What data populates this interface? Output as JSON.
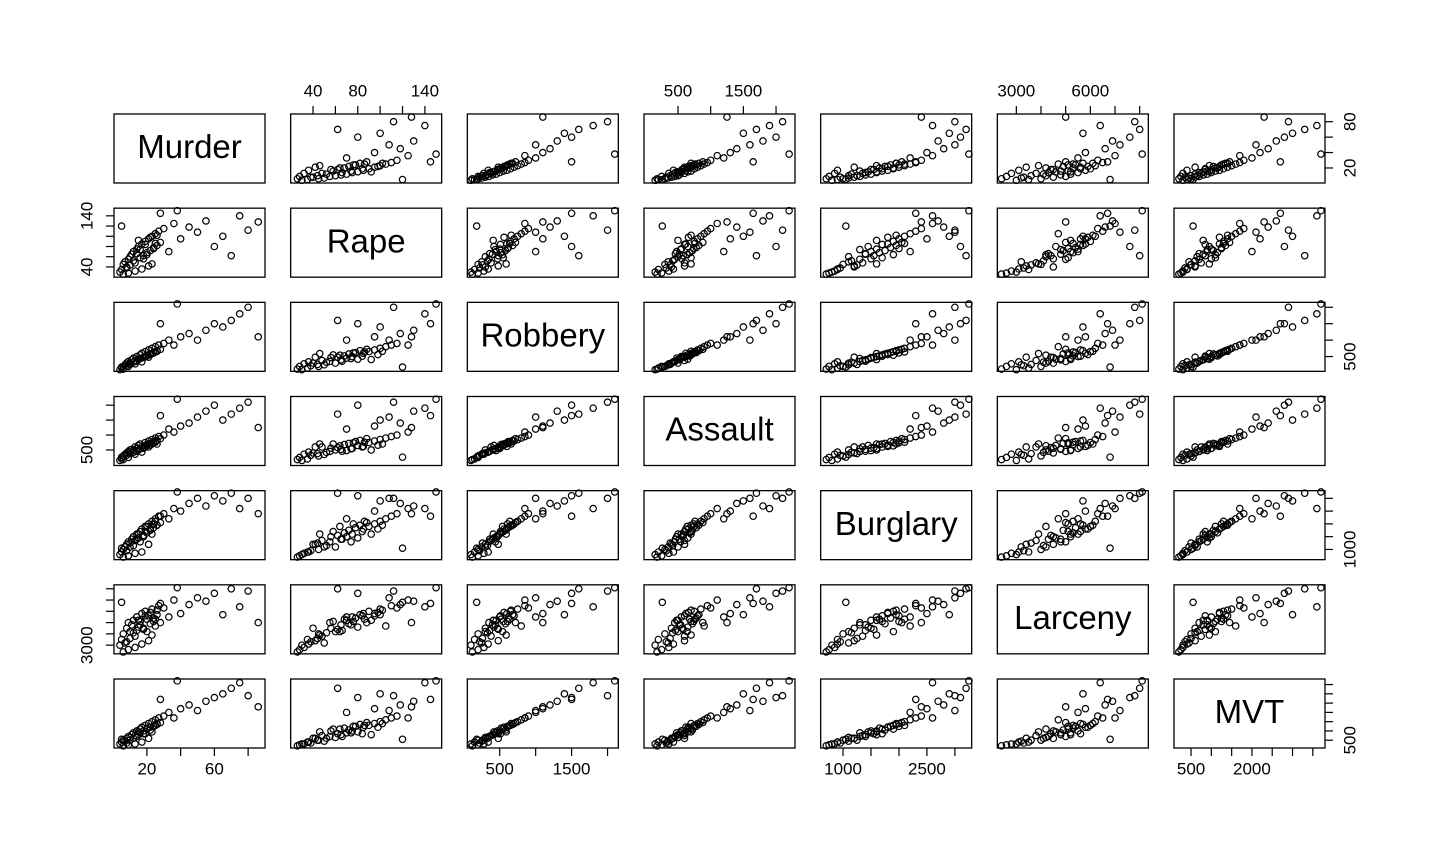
{
  "chart_data": {
    "type": "scatter_matrix",
    "variables": [
      {
        "name": "Murder",
        "lim": [
          0.5,
          90
        ],
        "ticks": [
          20,
          40,
          60,
          80
        ],
        "xticks": [
          20,
          60
        ],
        "yticks": [
          20,
          80
        ],
        "values": [
          4,
          5,
          6,
          7,
          8,
          9,
          10,
          11,
          12,
          13,
          14,
          15,
          16,
          17,
          18,
          19,
          20,
          21,
          22,
          23,
          24,
          25,
          26,
          27,
          28,
          5,
          8,
          10,
          12,
          14,
          15,
          16,
          18,
          19,
          20,
          22,
          23,
          24,
          25,
          26,
          30,
          33,
          36,
          40,
          45,
          50,
          55,
          60,
          65,
          70,
          75,
          80,
          86,
          38,
          28,
          21,
          17,
          13,
          9,
          6
        ]
      },
      {
        "name": "Rape",
        "lim": [
          20,
          155
        ],
        "ticks": [
          40,
          60,
          80,
          100,
          120,
          140
        ],
        "xticks": [
          40,
          80,
          140
        ],
        "yticks": [
          40,
          140
        ],
        "values": [
          30,
          35,
          45,
          50,
          40,
          55,
          60,
          65,
          70,
          48,
          75,
          80,
          58,
          85,
          62,
          90,
          68,
          95,
          72,
          100,
          78,
          105,
          82,
          110,
          88,
          120,
          38,
          44,
          52,
          66,
          92,
          74,
          56,
          84,
          64,
          98,
          46,
          76,
          86,
          102,
          115,
          70,
          125,
          95,
          118,
          108,
          130,
          80,
          100,
          62,
          140,
          112,
          128,
          150,
          145,
          42,
          36,
          32,
          28,
          26
        ]
      },
      {
        "name": "Robbery",
        "lim": [
          50,
          2150
        ],
        "ticks": [
          500,
          1000,
          1500,
          2000
        ],
        "xticks": [
          500,
          1500
        ],
        "yticks": [
          500
        ],
        "values": [
          100,
          150,
          200,
          250,
          300,
          350,
          300,
          400,
          450,
          380,
          500,
          420,
          550,
          600,
          480,
          650,
          520,
          700,
          580,
          750,
          620,
          800,
          680,
          850,
          720,
          180,
          220,
          260,
          330,
          360,
          410,
          440,
          470,
          510,
          540,
          560,
          590,
          610,
          640,
          660,
          900,
          1000,
          850,
          1100,
          1200,
          1000,
          1300,
          1500,
          1400,
          1600,
          1800,
          2000,
          1100,
          2100,
          1500,
          480,
          340,
          280,
          200,
          120
        ]
      },
      {
        "name": "Assault",
        "lim": [
          -20,
          2290
        ],
        "ticks": [
          500,
          1000,
          1500,
          2000
        ],
        "xticks": [
          500,
          1500
        ],
        "yticks": [
          500
        ],
        "values": [
          150,
          200,
          300,
          350,
          400,
          450,
          500,
          520,
          480,
          600,
          550,
          650,
          700,
          620,
          580,
          750,
          680,
          800,
          720,
          850,
          780,
          900,
          820,
          950,
          880,
          260,
          320,
          380,
          420,
          460,
          500,
          540,
          560,
          600,
          640,
          660,
          700,
          740,
          760,
          700,
          1000,
          1200,
          1100,
          1300,
          1400,
          1600,
          1800,
          2000,
          1500,
          1700,
          1900,
          2100,
          1250,
          2200,
          1650,
          600,
          430,
          360,
          250,
          180
        ]
      },
      {
        "name": "Burglary",
        "lim": [
          600,
          3300
        ],
        "ticks": [
          1000,
          1500,
          2000,
          2500,
          3000
        ],
        "xticks": [
          1000,
          2500
        ],
        "yticks": [
          1000
        ],
        "values": [
          800,
          900,
          1000,
          1100,
          1200,
          1300,
          1100,
          1400,
          1500,
          1350,
          1600,
          1450,
          1700,
          1800,
          1550,
          1900,
          1650,
          2000,
          1750,
          2100,
          1850,
          2200,
          1950,
          2300,
          2050,
          1050,
          950,
          1250,
          1150,
          1400,
          1600,
          1300,
          1500,
          1700,
          1900,
          1800,
          1600,
          2000,
          2100,
          1950,
          2400,
          2200,
          2600,
          2500,
          2800,
          3000,
          2700,
          3100,
          2900,
          3200,
          2600,
          3000,
          2400,
          3250,
          2300,
          1200,
          900,
          850,
          750,
          700
        ]
      },
      {
        "name": "Larceny",
        "lim": [
          2230,
          8350
        ],
        "ticks": [
          3000,
          4000,
          5000,
          6000,
          7000,
          8000
        ],
        "xticks": [
          3000,
          6000
        ],
        "yticks": [
          3000
        ],
        "values": [
          3000,
          3500,
          4000,
          3200,
          4500,
          5000,
          4200,
          4800,
          5200,
          3800,
          5500,
          4600,
          5100,
          5800,
          4400,
          6000,
          5300,
          5600,
          4900,
          6200,
          5400,
          4700,
          5700,
          6500,
          5000,
          6800,
          3300,
          3600,
          4100,
          4300,
          5200,
          4800,
          4500,
          5600,
          4200,
          5900,
          3900,
          5100,
          5300,
          6100,
          6300,
          5500,
          7000,
          5800,
          6600,
          7200,
          6900,
          7600,
          5700,
          8000,
          6400,
          7800,
          5000,
          8100,
          6700,
          3400,
          3100,
          2800,
          2600,
          2400
        ]
      },
      {
        "name": "MVT",
        "lim": [
          80,
          3800
        ],
        "ticks": [
          500,
          1000,
          1500,
          2000,
          2500,
          3000,
          3500
        ],
        "xticks": [
          500,
          2000
        ],
        "yticks": [
          500
        ],
        "values": [
          300,
          400,
          500,
          450,
          600,
          700,
          650,
          800,
          900,
          750,
          1000,
          950,
          1100,
          1200,
          850,
          1300,
          1150,
          1400,
          1050,
          1500,
          1250,
          1600,
          1350,
          1700,
          1450,
          550,
          350,
          500,
          600,
          700,
          800,
          900,
          1000,
          850,
          1100,
          1200,
          950,
          1250,
          1300,
          1400,
          1800,
          2000,
          1700,
          2200,
          2400,
          2100,
          2600,
          2800,
          3000,
          3300,
          3600,
          2900,
          2300,
          3700,
          2700,
          600,
          400,
          300,
          250,
          200
        ]
      }
    ]
  }
}
